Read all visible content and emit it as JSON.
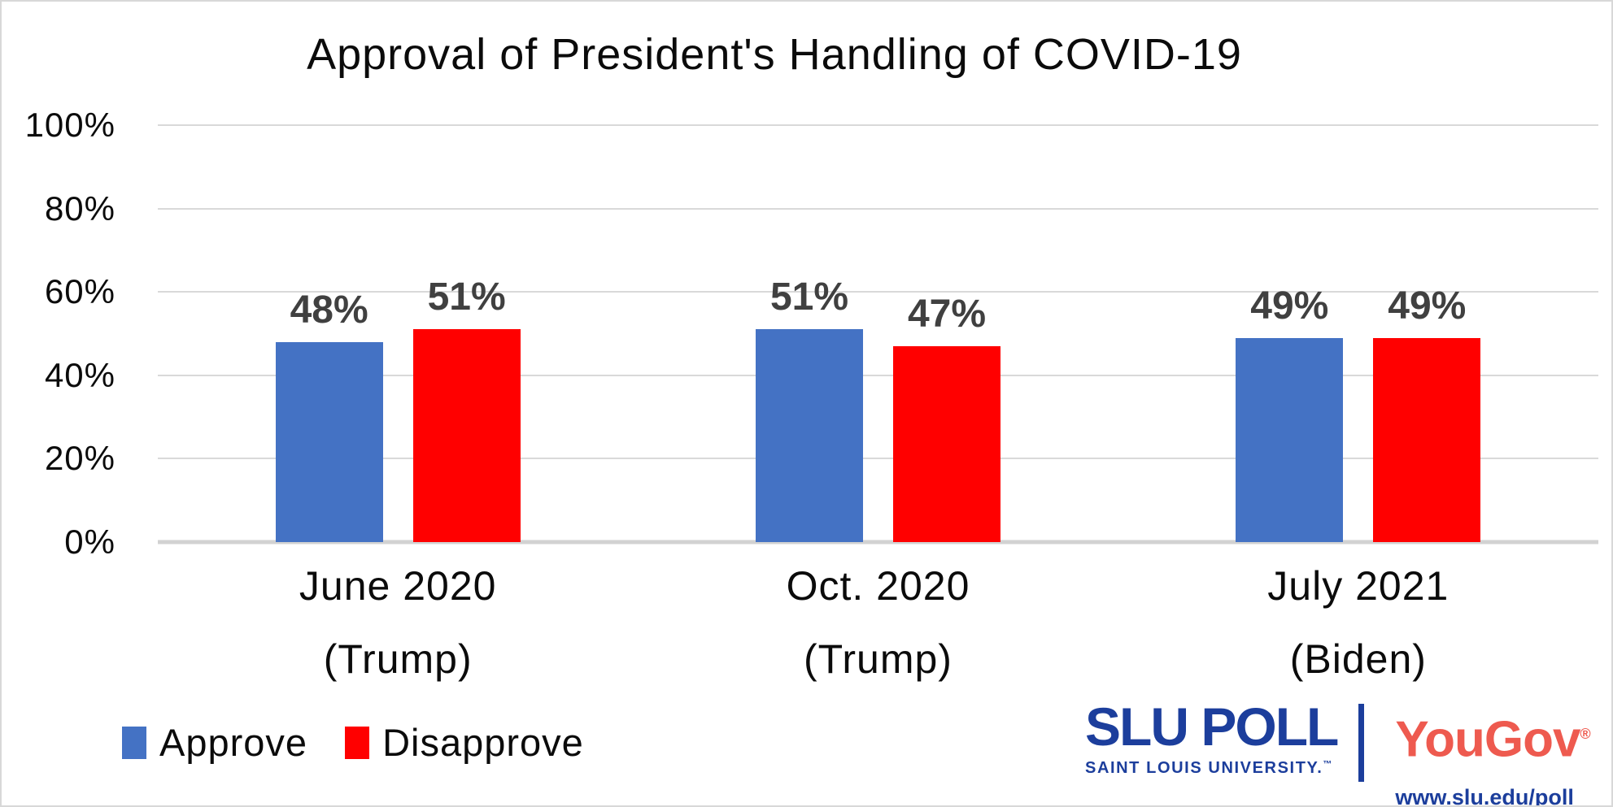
{
  "chart_data": {
    "type": "bar",
    "title": "Approval of President's Handling of COVID-19",
    "categories": [
      "June 2020",
      "Oct. 2020",
      "July 2021"
    ],
    "category_sublabels": [
      "(Trump)",
      "(Trump)",
      "(Biden)"
    ],
    "series": [
      {
        "name": "Approve",
        "color": "#4472C4",
        "values": [
          48,
          51,
          49
        ]
      },
      {
        "name": "Disapprove",
        "color": "#FF0000",
        "values": [
          51,
          47,
          49
        ]
      }
    ],
    "value_suffix": "%",
    "yticks": [
      "0%",
      "20%",
      "40%",
      "60%",
      "80%",
      "100%"
    ],
    "ylim": [
      0,
      100
    ],
    "grid": true,
    "legend_position": "bottom-left"
  },
  "branding": {
    "slu_word": "SLU",
    "poll_word": "POLL",
    "slu_subtitle": "SAINT LOUIS UNIVERSITY.",
    "slu_trademark": "™",
    "yougov_word": "YouGov",
    "yougov_mark": "®",
    "url": "www.slu.edu/poll"
  },
  "colors": {
    "approve": "#4472C4",
    "disapprove": "#FF0000",
    "gridline": "#D9D9D9",
    "axis_line": "#D2D2D2",
    "data_label": "#404040",
    "slu_blue": "#1C3E9C",
    "yougov_red": "#EE5A4F",
    "border": "#D8D8D8"
  }
}
